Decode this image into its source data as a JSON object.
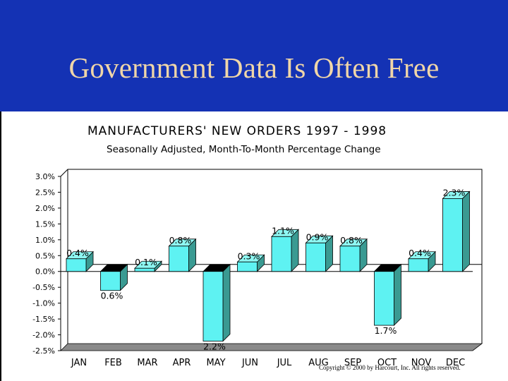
{
  "slide": {
    "title": "Government Data Is Often Free",
    "copyright": "Copyright © 2000 by Harcourt, Inc. All rights reserved."
  },
  "colors": {
    "banner": "#1432b4",
    "title_text": "#f0d6a8",
    "bar_front": "#5ef2f2",
    "bar_side": "#3a9a92",
    "bar_top": "#8ef7f2",
    "floor": "#8a8a8a"
  },
  "chart_data": {
    "type": "bar",
    "title": "MANUFACTURERS' NEW ORDERS  1997 - 1998",
    "subtitle": "Seasonally Adjusted, Month-To-Month Percentage Change",
    "categories": [
      "JAN",
      "FEB",
      "MAR",
      "APR",
      "MAY",
      "JUN",
      "JUL",
      "AUG",
      "SEP",
      "OCT",
      "NOV",
      "DEC"
    ],
    "values": [
      0.4,
      -0.6,
      0.1,
      0.8,
      -2.2,
      0.3,
      1.1,
      0.9,
      0.8,
      -1.7,
      0.4,
      2.3
    ],
    "data_labels": [
      "0.4%",
      "0.6%",
      "0.1%",
      "0.8%",
      "2.2%",
      "0.3%",
      "1.1%",
      "0.9%",
      "0.8%",
      "1.7%",
      "0.4%",
      "2.3%"
    ],
    "y_ticks": [
      3.0,
      2.5,
      2.0,
      1.5,
      1.0,
      0.5,
      0.0,
      -0.5,
      -1.0,
      -1.5,
      -2.0,
      -2.5
    ],
    "y_tick_labels": [
      "3.0%",
      "2.5%",
      "2.0%",
      "1.5%",
      "1.0%",
      "0.5%",
      "0.0%",
      "-0.5%",
      "-1.0%",
      "-1.5%",
      "-2.0%",
      "-2.5%"
    ],
    "ylim": [
      -2.5,
      3.0
    ],
    "grid": false,
    "legend": "none"
  }
}
